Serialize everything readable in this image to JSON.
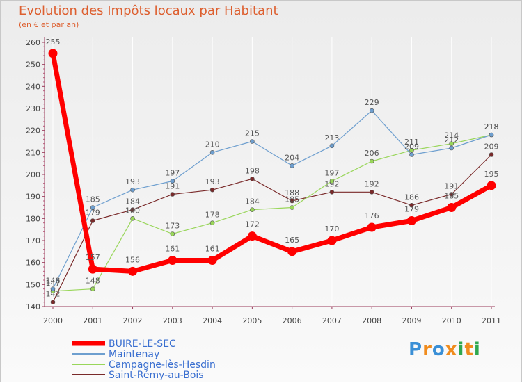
{
  "chart_data": {
    "type": "line",
    "title": "Evolution des Impôts locaux par Habitant",
    "subtitle": "(en € et par an)",
    "xlabel": "",
    "ylabel": "",
    "x": [
      "2000",
      "2001",
      "2002",
      "2003",
      "2004",
      "2005",
      "2006",
      "2007",
      "2008",
      "2009",
      "2010",
      "2011"
    ],
    "ylim": [
      140,
      260
    ],
    "yticks": [
      140,
      150,
      160,
      170,
      180,
      190,
      200,
      210,
      220,
      230,
      240,
      250,
      260
    ],
    "grid": "vertical",
    "legend_position": "bottom-left",
    "series": [
      {
        "name": "BUIRE-LE-SEC",
        "color": "#ff0000",
        "values": [
          255,
          157,
          156,
          161,
          161,
          172,
          165,
          170,
          176,
          179,
          185,
          195
        ]
      },
      {
        "name": "Maintenay",
        "color": "#6e9fcf",
        "values": [
          148,
          185,
          193,
          197,
          210,
          215,
          204,
          213,
          229,
          209,
          212,
          218
        ]
      },
      {
        "name": "Campagne-lès-Hesdin",
        "color": "#99d65a",
        "values": [
          147,
          148,
          180,
          173,
          178,
          184,
          185,
          197,
          206,
          211,
          214,
          218
        ]
      },
      {
        "name": "Saint-Rémy-au-Bois",
        "color": "#7a2a2a",
        "values": [
          142,
          179,
          184,
          191,
          193,
          198,
          188,
          192,
          192,
          186,
          191,
          209
        ]
      }
    ]
  },
  "logo": {
    "letters": [
      "P",
      "r",
      "o",
      "x",
      "i",
      "t",
      "i"
    ],
    "colors": [
      "#3a8fd6",
      "#f08c1e",
      "#3a8fd6",
      "#f08c1e",
      "#2fa84f",
      "#f08c1e",
      "#2fa84f"
    ]
  }
}
